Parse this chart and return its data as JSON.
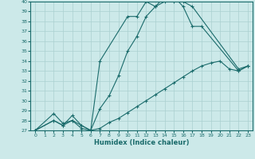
{
  "xlabel": "Humidex (Indice chaleur)",
  "xlim": [
    -0.5,
    23.5
  ],
  "ylim": [
    27,
    40
  ],
  "xticks": [
    0,
    1,
    2,
    3,
    4,
    5,
    6,
    7,
    8,
    9,
    10,
    11,
    12,
    13,
    14,
    15,
    16,
    17,
    18,
    19,
    20,
    21,
    22,
    23
  ],
  "yticks": [
    27,
    28,
    29,
    30,
    31,
    32,
    33,
    34,
    35,
    36,
    37,
    38,
    39,
    40
  ],
  "bg_color": "#cce9e9",
  "grid_color": "#aad0d0",
  "line_color": "#1a6b6b",
  "line1_x": [
    0,
    2,
    3,
    4,
    5,
    6,
    7,
    10,
    11,
    12,
    13,
    14,
    15,
    16,
    17,
    18,
    22,
    23
  ],
  "line1_y": [
    27.0,
    28.7,
    27.7,
    28.0,
    27.2,
    27.0,
    34.0,
    38.5,
    38.5,
    40.0,
    39.5,
    40.5,
    40.5,
    39.5,
    37.5,
    37.5,
    33.0,
    33.5
  ],
  "line2_x": [
    0,
    2,
    3,
    4,
    5,
    6,
    7,
    8,
    9,
    10,
    11,
    12,
    13,
    14,
    15,
    16,
    17,
    22,
    23
  ],
  "line2_y": [
    27.0,
    28.0,
    27.5,
    28.5,
    27.5,
    27.0,
    29.2,
    30.5,
    32.5,
    35.0,
    36.5,
    38.5,
    39.5,
    40.0,
    40.0,
    40.0,
    39.5,
    33.2,
    33.5
  ],
  "line3_x": [
    0,
    2,
    3,
    4,
    5,
    6,
    7,
    8,
    9,
    10,
    11,
    12,
    13,
    14,
    15,
    16,
    17,
    18,
    19,
    20,
    21,
    22,
    23
  ],
  "line3_y": [
    27.0,
    28.0,
    27.5,
    28.0,
    27.5,
    27.0,
    27.2,
    27.8,
    28.2,
    28.8,
    29.4,
    30.0,
    30.6,
    31.2,
    31.8,
    32.4,
    33.0,
    33.5,
    33.8,
    34.0,
    33.2,
    33.0,
    33.5
  ]
}
